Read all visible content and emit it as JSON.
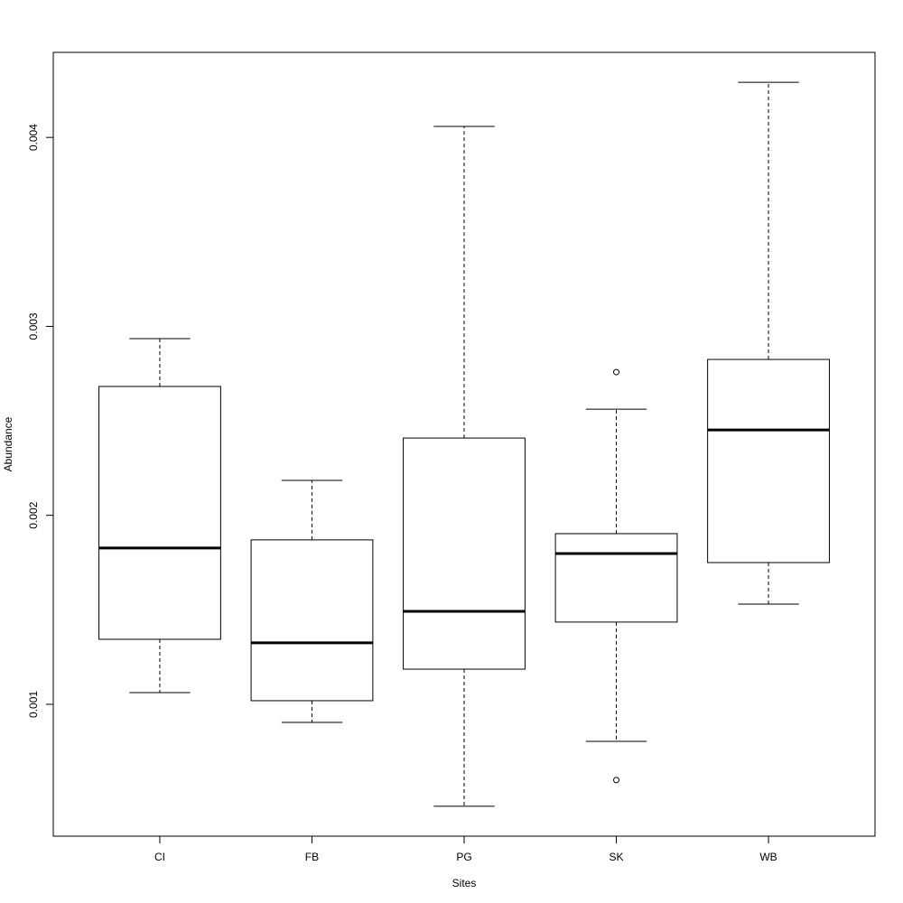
{
  "chart_data": {
    "type": "boxplot",
    "x_label": "Sites",
    "y_label": "Abundance",
    "categories": [
      "CI",
      "FB",
      "PG",
      "SK",
      "WB"
    ],
    "color": "#000000",
    "boxes": [
      {
        "whislo": 0.001062,
        "q1": 0.001344,
        "med": 0.001827,
        "q3": 0.002682,
        "whishi": 0.002935,
        "outliers": []
      },
      {
        "whislo": 0.000904,
        "q1": 0.001019,
        "med": 0.001325,
        "q3": 0.00187,
        "whishi": 0.002185,
        "outliers": []
      },
      {
        "whislo": 0.00046,
        "q1": 0.001186,
        "med": 0.001492,
        "q3": 0.002409,
        "whishi": 0.004058,
        "outliers": []
      },
      {
        "whislo": 0.000804,
        "q1": 0.001435,
        "med": 0.001798,
        "q3": 0.001903,
        "whishi": 0.002562,
        "outliers": [
          0.002758,
          0.000599
        ]
      },
      {
        "whislo": 0.00153,
        "q1": 0.00175,
        "med": 0.002452,
        "q3": 0.002825,
        "whishi": 0.004292,
        "outliers": []
      }
    ],
    "ylim": [
      0.000302,
      0.00445
    ],
    "yticks": [
      0.001,
      0.002,
      0.003,
      0.004
    ]
  }
}
